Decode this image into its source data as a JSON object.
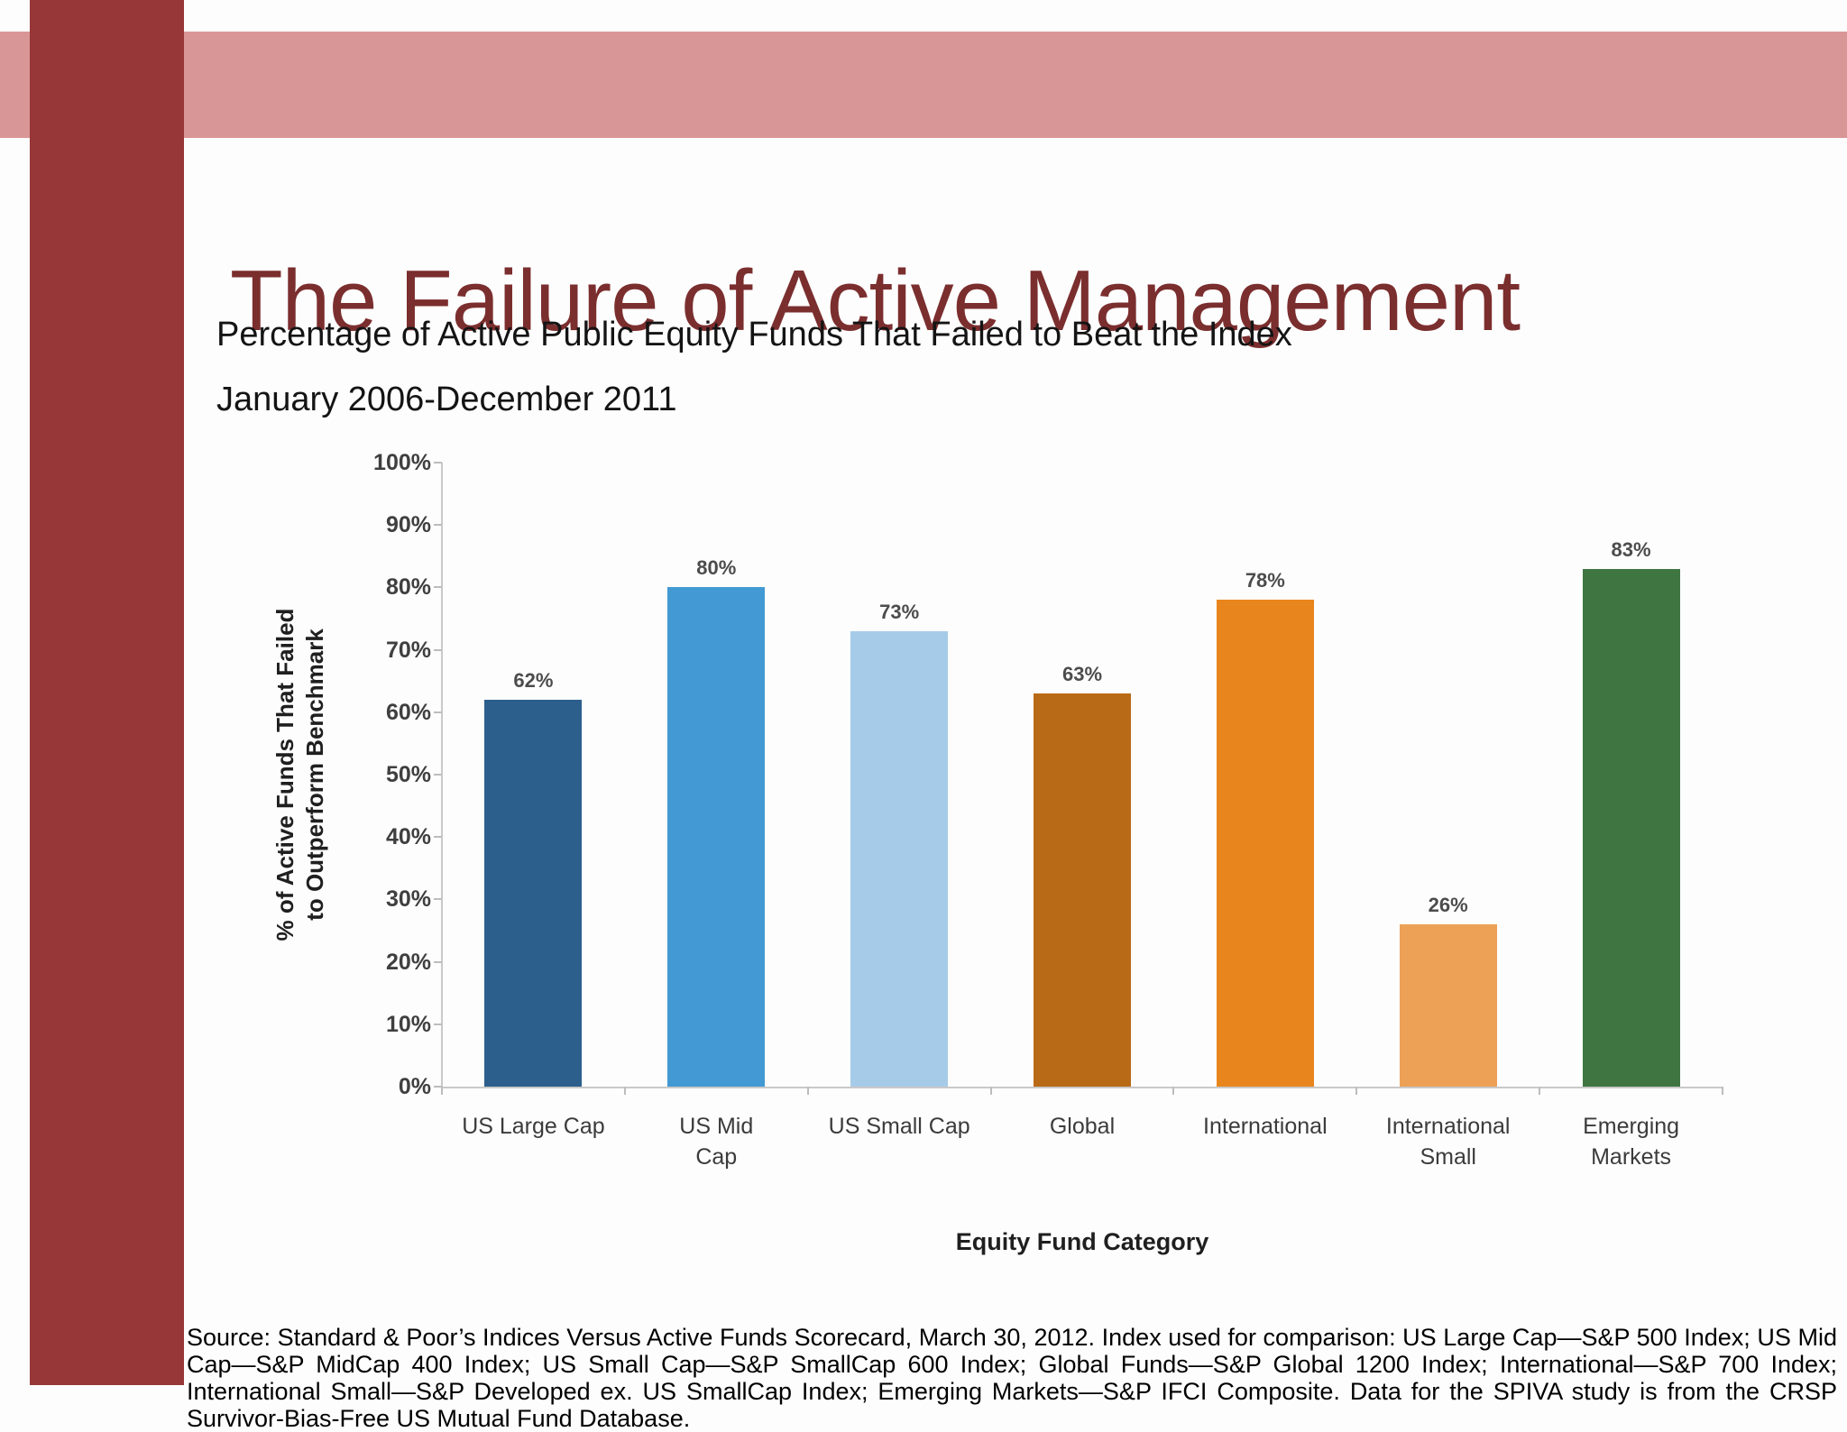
{
  "slide": {
    "title": "The Failure of Active Management",
    "subtitle": "Percentage of Active Public Equity Funds That Failed to Beat the Index",
    "date_range": "January 2006-December 2011",
    "source_note": "Source: Standard & Poor’s Indices Versus Active Funds Scorecard, March 30, 2012. Index used for comparison: US Large Cap—S&P 500 Index; US Mid Cap—S&P MidCap 400 Index; US Small Cap—S&P SmallCap 600 Index; Global Funds—S&P Global 1200 Index; International—S&P 700 Index; International Small—S&P Developed ex. US SmallCap Index; Emerging Markets—S&P IFCI Composite. Data for the SPIVA study is from the CRSP Survivor-Bias-Free US Mutual Fund Database."
  },
  "colors": {
    "accent_sidebar": "#973737",
    "accent_band": "#d99697",
    "title_text": "#7b2e2e",
    "axis_line": "#c9c9c9",
    "tick_mark": "#bdbdbd",
    "tick_label": "#3f3f3f",
    "value_label": "#4c4c4c"
  },
  "chart_data": {
    "type": "bar",
    "title": "Percentage of Active Public Equity Funds That Failed to Beat the Index",
    "period": "January 2006-December 2011",
    "categories": [
      "US Large Cap",
      "US Mid Cap",
      "US Small Cap",
      "Global",
      "International",
      "International Small",
      "Emerging Markets"
    ],
    "category_label_lines": [
      [
        "US Large Cap"
      ],
      [
        "US Mid",
        "Cap"
      ],
      [
        "US Small Cap"
      ],
      [
        "Global"
      ],
      [
        "International"
      ],
      [
        "International",
        "Small"
      ],
      [
        "Emerging",
        "Markets"
      ]
    ],
    "values": [
      62,
      80,
      73,
      63,
      78,
      26,
      83
    ],
    "value_labels": [
      "62%",
      "80%",
      "73%",
      "63%",
      "78%",
      "26%",
      "83%"
    ],
    "bar_colors": [
      "#2d5f8d",
      "#4399d3",
      "#a6cbe8",
      "#b96a16",
      "#e8861d",
      "#eda157",
      "#3f7540"
    ],
    "xlabel": "Equity Fund Category",
    "ylabel": "% of Active Funds That Failed to Outperform Benchmark",
    "ylabel_lines": [
      "% of Active Funds That Failed",
      "to Outperform Benchmark"
    ],
    "ylim": [
      0,
      100
    ],
    "ytick_step": 10,
    "yticks": [
      "100%",
      "90%",
      "80%",
      "70%",
      "60%",
      "50%",
      "40%",
      "30%",
      "20%",
      "10%",
      "0%"
    ],
    "grid": false,
    "legend": false
  }
}
